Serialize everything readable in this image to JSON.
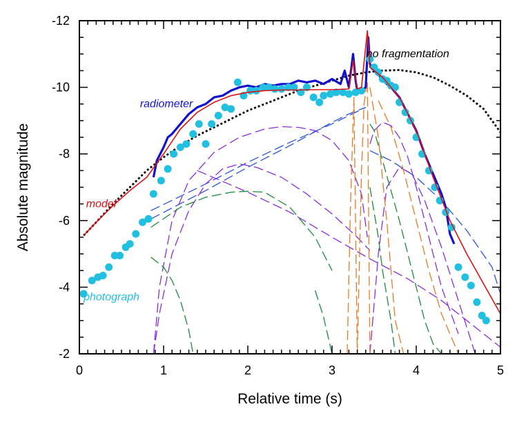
{
  "chart_data": {
    "type": "line",
    "xlabel": "Relative time (s)",
    "ylabel": "Absolute magnitude",
    "xlim": [
      0,
      5
    ],
    "ylim": [
      -2,
      -12
    ],
    "y_axis_inverted": true,
    "grid": false,
    "x_ticks": [
      "0",
      "1",
      "2",
      "3",
      "4",
      "5"
    ],
    "y_ticks": [
      "-2",
      "-4",
      "-6",
      "-8",
      "-10",
      "-12"
    ],
    "x_major": [
      0,
      1,
      2,
      3,
      4,
      5
    ],
    "y_major": [
      -2,
      -4,
      -6,
      -8,
      -10,
      -12
    ],
    "annotations": [
      {
        "text": "no fragmentation",
        "x": 3.9,
        "y": -10.9,
        "color": "#000000"
      },
      {
        "text": "radiometer",
        "x": 0.72,
        "y": -9.4,
        "color": "#1111cc"
      },
      {
        "text": "model",
        "x": 0.08,
        "y": -6.4,
        "color": "#dd1111"
      },
      {
        "text": "photograph",
        "x": 0.05,
        "y": -3.6,
        "color": "#22c0e0"
      }
    ],
    "series": [
      {
        "name": "no fragmentation",
        "style": "dotted",
        "color": "#000000",
        "x": [
          0.05,
          0.2,
          0.4,
          0.6,
          0.8,
          1.0,
          1.2,
          1.4,
          1.6,
          1.8,
          2.0,
          2.2,
          2.4,
          2.6,
          2.8,
          3.0,
          3.2,
          3.4,
          3.6,
          3.8,
          4.0,
          4.2,
          4.4,
          4.6,
          4.8,
          5.0
        ],
        "y": [
          -5.55,
          -5.95,
          -6.5,
          -7.0,
          -7.5,
          -7.9,
          -8.25,
          -8.55,
          -8.8,
          -9.05,
          -9.3,
          -9.5,
          -9.7,
          -9.9,
          -10.05,
          -10.2,
          -10.35,
          -10.45,
          -10.5,
          -10.52,
          -10.45,
          -10.3,
          -10.05,
          -9.75,
          -9.35,
          -8.65
        ]
      },
      {
        "name": "model",
        "style": "solid",
        "color": "#dd1111",
        "x": [
          0.05,
          0.2,
          0.4,
          0.6,
          0.8,
          1.0,
          1.2,
          1.4,
          1.6,
          1.8,
          2.0,
          2.2,
          2.4,
          2.6,
          2.8,
          3.0,
          3.2,
          3.25,
          3.3,
          3.35,
          3.42,
          3.45,
          3.5,
          3.6,
          3.8,
          4.0,
          4.2,
          4.4,
          4.6,
          4.8,
          5.0
        ],
        "y": [
          -5.55,
          -5.95,
          -6.45,
          -6.9,
          -7.3,
          -8.0,
          -8.75,
          -9.25,
          -9.55,
          -9.75,
          -9.85,
          -9.9,
          -9.92,
          -9.92,
          -9.93,
          -9.93,
          -9.95,
          -10.8,
          -9.95,
          -10.0,
          -11.7,
          -10.6,
          -10.5,
          -10.3,
          -9.7,
          -8.7,
          -7.3,
          -6.0,
          -5.0,
          -4.1,
          -3.2
        ]
      },
      {
        "name": "radiometer",
        "style": "solid-thick",
        "color": "#1111cc",
        "x": [
          0.88,
          0.92,
          1.0,
          1.05,
          1.1,
          1.2,
          1.3,
          1.4,
          1.5,
          1.6,
          1.7,
          1.8,
          1.9,
          2.0,
          2.1,
          2.2,
          2.3,
          2.4,
          2.5,
          2.6,
          2.7,
          2.8,
          2.9,
          3.0,
          3.1,
          3.15,
          3.2,
          3.25,
          3.28,
          3.3,
          3.35,
          3.4,
          3.43,
          3.45,
          3.5,
          3.55,
          3.6,
          3.7,
          3.8,
          3.9,
          4.0,
          4.1,
          4.2,
          4.3,
          4.35,
          4.4,
          4.45
        ],
        "y": [
          -7.3,
          -7.8,
          -8.2,
          -8.5,
          -8.6,
          -8.9,
          -9.2,
          -9.4,
          -9.5,
          -9.7,
          -9.75,
          -9.9,
          -10.0,
          -10.05,
          -10.0,
          -10.1,
          -10.05,
          -10.1,
          -10.1,
          -10.2,
          -10.15,
          -10.2,
          -10.1,
          -10.25,
          -10.1,
          -10.5,
          -10.0,
          -11.0,
          -10.2,
          -9.9,
          -9.9,
          -10.0,
          -11.5,
          -10.7,
          -10.5,
          -10.4,
          -10.2,
          -10.0,
          -9.7,
          -9.2,
          -8.7,
          -8.0,
          -7.4,
          -6.8,
          -6.4,
          -5.6,
          -5.3
        ]
      },
      {
        "name": "photograph",
        "style": "markers",
        "color": "#22c0e0",
        "x": [
          0.05,
          0.15,
          0.22,
          0.28,
          0.35,
          0.42,
          0.48,
          0.55,
          0.6,
          0.67,
          0.75,
          0.82,
          0.88,
          0.97,
          1.05,
          1.12,
          1.2,
          1.27,
          1.35,
          1.42,
          1.5,
          1.57,
          1.65,
          1.73,
          1.8,
          1.88,
          1.95,
          2.03,
          2.1,
          2.18,
          2.25,
          2.32,
          2.4,
          2.48,
          2.55,
          2.63,
          2.7,
          2.78,
          2.85,
          2.9,
          2.98,
          3.05,
          3.13,
          3.2,
          3.28,
          3.35,
          3.45,
          3.5,
          3.55,
          3.6,
          3.65,
          3.7,
          3.75,
          3.8,
          3.87,
          3.93,
          4.0,
          4.07,
          4.15,
          4.22,
          4.28,
          4.35,
          4.42,
          4.5,
          4.58,
          4.65,
          4.72,
          4.78,
          4.83
        ],
        "y": [
          -3.8,
          -4.2,
          -4.3,
          -4.35,
          -4.6,
          -4.95,
          -4.95,
          -5.2,
          -5.3,
          -5.6,
          -5.95,
          -6.05,
          -6.8,
          -7.2,
          -7.55,
          -8.0,
          -8.2,
          -8.3,
          -8.6,
          -8.9,
          -8.3,
          -8.9,
          -9.15,
          -9.4,
          -9.35,
          -10.15,
          -9.75,
          -9.9,
          -9.9,
          -10.0,
          -10.0,
          -9.95,
          -9.95,
          -10.0,
          -10.0,
          -9.85,
          -10.0,
          -9.7,
          -9.55,
          -9.75,
          -9.8,
          -9.85,
          -9.85,
          -9.8,
          -9.85,
          -9.9,
          -10.85,
          -10.6,
          -10.45,
          -10.25,
          -10.2,
          -10.05,
          -10.0,
          -9.55,
          -9.25,
          -9.0,
          -8.5,
          -8.0,
          -7.5,
          -7.0,
          -6.6,
          -6.25,
          -5.8,
          -4.6,
          -4.3,
          -4.05,
          -3.55,
          -3.15,
          -3.0
        ]
      },
      {
        "name": "",
        "style": "dashed",
        "color": "#2a52dd",
        "x": [
          0.85,
          1.5,
          2.0,
          2.5,
          3.0,
          3.2,
          3.4
        ],
        "y": [
          -6.05,
          -6.9,
          -7.6,
          -8.25,
          -8.95,
          -9.2,
          -9.4
        ]
      },
      {
        "name": "",
        "style": "dashed",
        "color": "#2a52dd",
        "x": [
          0.85,
          1.5,
          2.0,
          2.5,
          3.0,
          3.4
        ],
        "y": [
          -6.3,
          -7.1,
          -7.75,
          -8.35,
          -8.9,
          -9.4
        ]
      },
      {
        "name": "",
        "style": "dashed",
        "color": "#2a52dd",
        "x": [
          3.45,
          3.7,
          4.0,
          4.3,
          4.6,
          4.9,
          5.0
        ],
        "y": [
          -8.1,
          -7.8,
          -7.3,
          -6.6,
          -5.7,
          -4.6,
          -3.8
        ]
      },
      {
        "name": "",
        "style": "dashed",
        "color": "#8a2be2",
        "x": [
          0.88,
          0.95,
          1.1,
          1.3,
          1.5,
          1.7,
          1.9,
          2.1,
          2.4,
          2.7,
          3.0,
          3.3,
          3.45
        ],
        "y": [
          -2.0,
          -3.2,
          -5.0,
          -6.3,
          -7.1,
          -7.55,
          -7.7,
          -7.6,
          -7.3,
          -6.8,
          -6.2,
          -5.5,
          -5.1
        ]
      },
      {
        "name": "",
        "style": "dashed",
        "color": "#8a2be2",
        "x": [
          0.88,
          0.95,
          1.1,
          1.3,
          1.6,
          1.9,
          2.2,
          2.4,
          2.6,
          2.8,
          3.0,
          3.2,
          3.35,
          3.42
        ],
        "y": [
          -2.0,
          -4.0,
          -6.0,
          -7.2,
          -8.05,
          -8.5,
          -8.75,
          -8.82,
          -8.8,
          -8.7,
          -8.4,
          -7.8,
          -6.8,
          -5.5
        ]
      },
      {
        "name": "",
        "style": "dashed",
        "color": "#8a2be2",
        "x": [
          1.4,
          2.0,
          2.5,
          3.0,
          3.45,
          3.9,
          4.3,
          4.7,
          5.0
        ],
        "y": [
          -7.5,
          -6.85,
          -6.25,
          -5.5,
          -4.85,
          -4.25,
          -3.6,
          -2.8,
          -2.2
        ]
      },
      {
        "name": "",
        "style": "dashed",
        "color": "#8a2be2",
        "x": [
          3.45,
          3.5,
          3.6,
          3.7,
          3.8,
          3.9,
          4.0,
          4.15,
          4.3,
          4.5
        ],
        "y": [
          -8.3,
          -8.7,
          -8.95,
          -8.85,
          -8.5,
          -7.9,
          -7.0,
          -5.5,
          -4.0,
          -2.6
        ]
      },
      {
        "name": "",
        "style": "dashed",
        "color": "#8a2be2",
        "x": [
          3.45,
          3.55,
          3.65,
          3.8,
          3.95,
          4.1,
          4.3,
          4.5,
          4.7
        ],
        "y": [
          -2.0,
          -5.0,
          -7.0,
          -7.6,
          -7.4,
          -6.6,
          -5.2,
          -3.6,
          -2.0
        ]
      },
      {
        "name": "",
        "style": "dashed",
        "color": "#1a8a3a",
        "x": [
          0.85,
          1.2,
          1.5,
          1.8,
          2.0,
          2.2,
          2.5,
          2.8,
          3.0
        ],
        "y": [
          -5.8,
          -6.4,
          -6.7,
          -6.85,
          -6.88,
          -6.85,
          -6.4,
          -5.5,
          -4.5
        ]
      },
      {
        "name": "",
        "style": "dashed",
        "color": "#1a8a3a",
        "x": [
          2.8,
          2.9,
          3.0
        ],
        "y": [
          -3.9,
          -3.1,
          -2.0
        ]
      },
      {
        "name": "",
        "style": "dashed",
        "color": "#1a8a3a",
        "x": [
          0.85,
          1.0,
          1.1,
          1.2,
          1.3,
          1.35
        ],
        "y": [
          -4.9,
          -4.6,
          -4.2,
          -3.6,
          -2.7,
          -2.0
        ]
      },
      {
        "name": "",
        "style": "dashed",
        "color": "#1a8a3a",
        "x": [
          3.45,
          3.5,
          3.6,
          3.7,
          3.8,
          3.9,
          4.0,
          4.1,
          4.2,
          4.3
        ],
        "y": [
          -8.9,
          -8.7,
          -7.8,
          -6.9,
          -6.0,
          -5.0,
          -4.0,
          -3.0,
          -2.3,
          -2.0
        ]
      },
      {
        "name": "",
        "style": "dashed",
        "color": "#1a8a3a",
        "x": [
          3.45,
          3.55,
          3.6,
          3.7,
          3.75
        ],
        "y": [
          -7.0,
          -5.5,
          -4.5,
          -3.0,
          -2.0
        ]
      },
      {
        "name": "",
        "style": "dashed",
        "color": "#ee7722",
        "x": [
          3.18,
          3.22,
          3.26,
          3.3
        ],
        "y": [
          -2.0,
          -6.5,
          -9.7,
          -2.0
        ]
      },
      {
        "name": "",
        "style": "dashed",
        "color": "#ee7722",
        "x": [
          3.3,
          3.35,
          3.38,
          3.42,
          3.45
        ],
        "y": [
          -2.0,
          -7.5,
          -9.5,
          -10.2,
          -2.0
        ]
      },
      {
        "name": "",
        "style": "dashed",
        "color": "#ee7722",
        "x": [
          3.45,
          3.55,
          3.65,
          3.75,
          3.85
        ],
        "y": [
          -10.0,
          -8.5,
          -6.0,
          -3.0,
          -2.0
        ]
      },
      {
        "name": "",
        "style": "dashed",
        "color": "#ee7722",
        "x": [
          3.55,
          3.7,
          3.85,
          4.0,
          4.15,
          4.3,
          4.5
        ],
        "y": [
          -9.6,
          -8.8,
          -7.5,
          -6.0,
          -4.5,
          -3.2,
          -2.0
        ]
      }
    ]
  }
}
